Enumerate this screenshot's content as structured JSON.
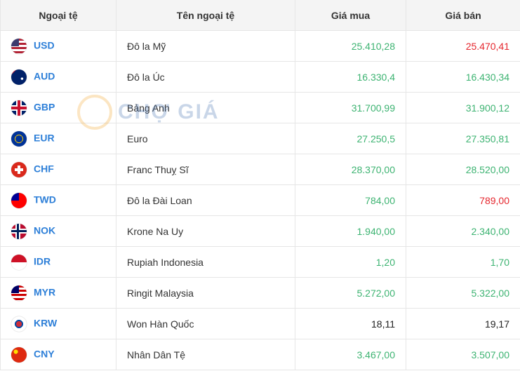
{
  "table": {
    "header": [
      "Ngoại tệ",
      "Tên ngoại tệ",
      "Giá mua",
      "Giá bán"
    ],
    "rows": [
      {
        "code": "USD",
        "name": "Đô la Mỹ",
        "buy": "25.410,28",
        "sell": "25.470,41",
        "buy_color": "#3cb371",
        "sell_color": "#e5262d"
      },
      {
        "code": "AUD",
        "name": "Đô la Úc",
        "buy": "16.330,4",
        "sell": "16.430,34",
        "buy_color": "#3cb371",
        "sell_color": "#3cb371"
      },
      {
        "code": "GBP",
        "name": "Bảng Anh",
        "buy": "31.700,99",
        "sell": "31.900,12",
        "buy_color": "#3cb371",
        "sell_color": "#3cb371"
      },
      {
        "code": "EUR",
        "name": "Euro",
        "buy": "27.250,5",
        "sell": "27.350,81",
        "buy_color": "#3cb371",
        "sell_color": "#3cb371"
      },
      {
        "code": "CHF",
        "name": "Franc Thuỵ Sĩ",
        "buy": "28.370,00",
        "sell": "28.520,00",
        "buy_color": "#3cb371",
        "sell_color": "#3cb371"
      },
      {
        "code": "TWD",
        "name": "Đô la Đài Loan",
        "buy": "784,00",
        "sell": "789,00",
        "buy_color": "#3cb371",
        "sell_color": "#e5262d"
      },
      {
        "code": "NOK",
        "name": "Krone Na Uy",
        "buy": "1.940,00",
        "sell": "2.340,00",
        "buy_color": "#3cb371",
        "sell_color": "#3cb371"
      },
      {
        "code": "IDR",
        "name": "Rupiah Indonesia",
        "buy": "1,20",
        "sell": "1,70",
        "buy_color": "#3cb371",
        "sell_color": "#3cb371"
      },
      {
        "code": "MYR",
        "name": "Ringit Malaysia",
        "buy": "5.272,00",
        "sell": "5.322,00",
        "buy_color": "#3cb371",
        "sell_color": "#3cb371"
      },
      {
        "code": "KRW",
        "name": "Won Hàn Quốc",
        "buy": "18,11",
        "sell": "19,17",
        "buy_color": "#222222",
        "sell_color": "#222222"
      },
      {
        "code": "CNY",
        "name": "Nhân Dân Tệ",
        "buy": "3.467,00",
        "sell": "3.507,00",
        "buy_color": "#3cb371",
        "sell_color": "#3cb371"
      }
    ]
  },
  "watermark": "CHỢ GIÁ"
}
